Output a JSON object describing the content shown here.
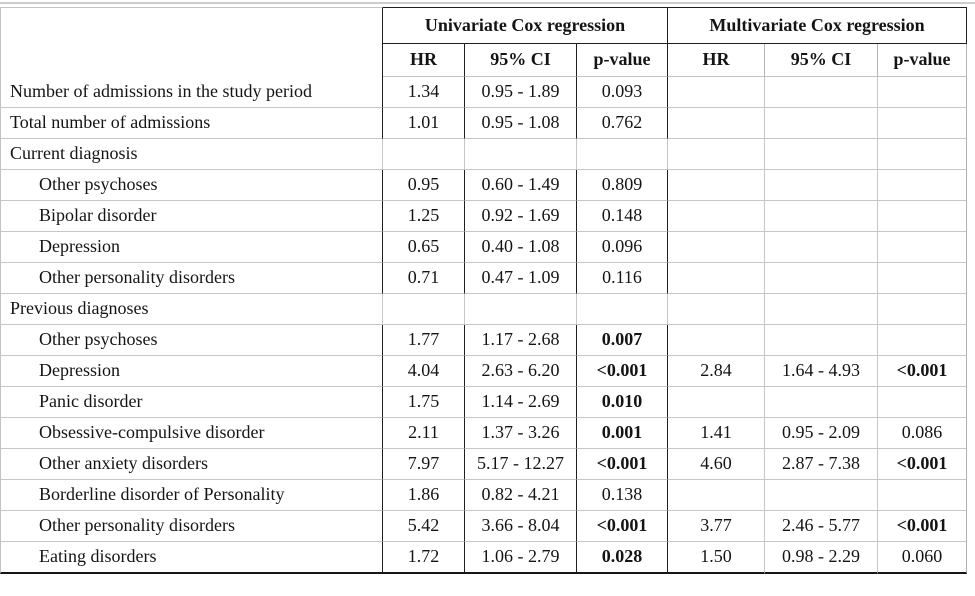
{
  "colors": {
    "border_dark": "#1f1f1f",
    "border_light": "#c6c6c6",
    "text": "#141414"
  },
  "table": {
    "group_headers": {
      "univariate": "Univariate Cox regression",
      "multivariate": "Multivariate Cox regression"
    },
    "column_headers": {
      "hr": "HR",
      "ci": "95% CI",
      "p": "p-value"
    },
    "rows": [
      {
        "label": "Number of admissions in the study period",
        "indent": false,
        "uni": {
          "hr": "1.34",
          "ci": "0.95 - 1.89",
          "p": "0.093",
          "bold": false
        },
        "multi": null
      },
      {
        "label": "Total number of admissions",
        "indent": false,
        "uni": {
          "hr": "1.01",
          "ci": "0.95 - 1.08",
          "p": "0.762",
          "bold": false
        },
        "multi": null
      },
      {
        "label": "Current diagnosis",
        "indent": false,
        "uni": null,
        "multi": null
      },
      {
        "label": "Other psychoses",
        "indent": true,
        "uni": {
          "hr": "0.95",
          "ci": "0.60 - 1.49",
          "p": "0.809",
          "bold": false
        },
        "multi": null
      },
      {
        "label": "Bipolar disorder",
        "indent": true,
        "uni": {
          "hr": "1.25",
          "ci": "0.92 - 1.69",
          "p": "0.148",
          "bold": false
        },
        "multi": null
      },
      {
        "label": "Depression",
        "indent": true,
        "uni": {
          "hr": "0.65",
          "ci": "0.40 - 1.08",
          "p": "0.096",
          "bold": false
        },
        "multi": null
      },
      {
        "label": "Other personality disorders",
        "indent": true,
        "uni": {
          "hr": "0.71",
          "ci": "0.47 - 1.09",
          "p": "0.116",
          "bold": false
        },
        "multi": null
      },
      {
        "label": "Previous diagnoses",
        "indent": false,
        "uni": null,
        "multi": null
      },
      {
        "label": "Other psychoses",
        "indent": true,
        "uni": {
          "hr": "1.77",
          "ci": "1.17 - 2.68",
          "p": "0.007",
          "bold": true
        },
        "multi": null
      },
      {
        "label": "Depression",
        "indent": true,
        "uni": {
          "hr": "4.04",
          "ci": "2.63 - 6.20",
          "p": "<0.001",
          "bold": true
        },
        "multi": {
          "hr": "2.84",
          "ci": "1.64 - 4.93",
          "p": "<0.001",
          "bold": true
        }
      },
      {
        "label": "Panic disorder",
        "indent": true,
        "uni": {
          "hr": "1.75",
          "ci": "1.14 - 2.69",
          "p": "0.010",
          "bold": true
        },
        "multi": null
      },
      {
        "label": "Obsessive-compulsive disorder",
        "indent": true,
        "uni": {
          "hr": "2.11",
          "ci": "1.37 - 3.26",
          "p": "0.001",
          "bold": true
        },
        "multi": {
          "hr": "1.41",
          "ci": "0.95 - 2.09",
          "p": "0.086",
          "bold": false
        }
      },
      {
        "label": "Other anxiety disorders",
        "indent": true,
        "uni": {
          "hr": "7.97",
          "ci": "5.17 - 12.27",
          "p": "<0.001",
          "bold": true
        },
        "multi": {
          "hr": "4.60",
          "ci": "2.87 - 7.38",
          "p": "<0.001",
          "bold": true
        }
      },
      {
        "label": "Borderline disorder of Personality",
        "indent": true,
        "uni": {
          "hr": "1.86",
          "ci": "0.82 - 4.21",
          "p": "0.138",
          "bold": false
        },
        "multi": null
      },
      {
        "label": "Other personality disorders",
        "indent": true,
        "uni": {
          "hr": "5.42",
          "ci": "3.66 - 8.04",
          "p": "<0.001",
          "bold": true
        },
        "multi": {
          "hr": "3.77",
          "ci": "2.46 - 5.77",
          "p": "<0.001",
          "bold": true
        }
      },
      {
        "label": "Eating disorders",
        "indent": true,
        "uni": {
          "hr": "1.72",
          "ci": "1.06 - 2.79",
          "p": "0.028",
          "bold": true
        },
        "multi": {
          "hr": "1.50",
          "ci": "0.98 - 2.29",
          "p": "0.060",
          "bold": false
        }
      }
    ]
  }
}
